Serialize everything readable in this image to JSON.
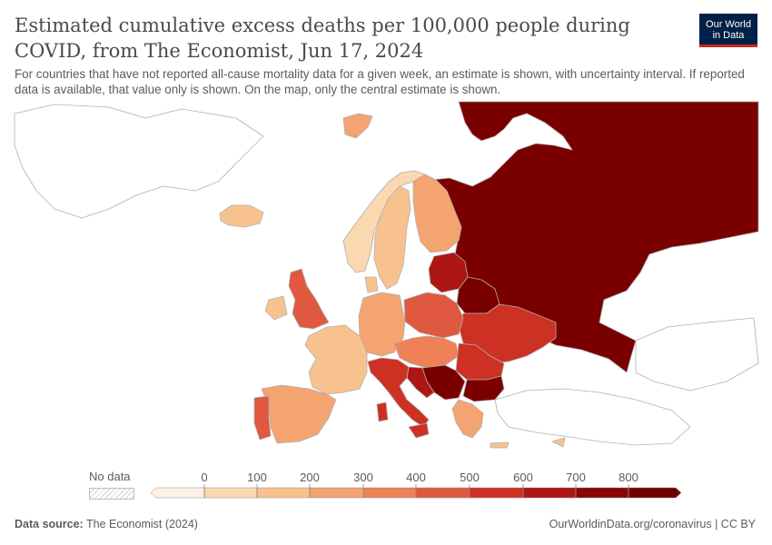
{
  "header": {
    "title": "Estimated cumulative excess deaths per 100,000 people during COVID, from The Economist, Jun 17, 2024",
    "subtitle": "For countries that have not reported all-cause mortality data for a given week, an estimate is shown, with uncertainty interval. If reported data is available, that value only is shown. On the map, only the central estimate is shown."
  },
  "logo": {
    "line1": "Our World",
    "line2": "in Data",
    "bg_color": "#002147",
    "accent_color": "#ce261e"
  },
  "legend": {
    "no_data_label": "No data",
    "ticks": [
      "0",
      "100",
      "200",
      "300",
      "400",
      "500",
      "600",
      "700",
      "800"
    ],
    "bins": [
      {
        "color": "#fdf0e5"
      },
      {
        "color": "#fad8b0"
      },
      {
        "color": "#f8c28f"
      },
      {
        "color": "#f4a470"
      },
      {
        "color": "#ee8256"
      },
      {
        "color": "#e0583f"
      },
      {
        "color": "#cc3124"
      },
      {
        "color": "#ae1515"
      },
      {
        "color": "#8a0505"
      },
      {
        "color": "#700000"
      }
    ]
  },
  "map_colors": {
    "land_outline": "#b0b0b0",
    "no_data_fill": "#ffffff"
  },
  "countries": [
    {
      "name": "Russia",
      "color": "#7a0000"
    },
    {
      "name": "Iceland",
      "color": "#f4a470"
    },
    {
      "name": "Norway",
      "color": "#fad8b0"
    },
    {
      "name": "Sweden",
      "color": "#f8c28f"
    },
    {
      "name": "Finland",
      "color": "#f4a470"
    },
    {
      "name": "United Kingdom",
      "color": "#e0583f"
    },
    {
      "name": "Ireland",
      "color": "#f8c28f"
    },
    {
      "name": "France",
      "color": "#f8c28f"
    },
    {
      "name": "Spain",
      "color": "#f4a470"
    },
    {
      "name": "Portugal",
      "color": "#e0583f"
    },
    {
      "name": "Germany",
      "color": "#f4a470"
    },
    {
      "name": "Poland",
      "color": "#e0583f"
    },
    {
      "name": "Belarus",
      "color": "#7a0000"
    },
    {
      "name": "Ukraine",
      "color": "#cc3124"
    },
    {
      "name": "Italy",
      "color": "#cc3124"
    },
    {
      "name": "Greece",
      "color": "#f4a470"
    },
    {
      "name": "Bulgaria",
      "color": "#7a0000"
    },
    {
      "name": "Romania",
      "color": "#cc3124"
    },
    {
      "name": "Serbia",
      "color": "#7a0000"
    },
    {
      "name": "Baltic states",
      "color": "#ae1515"
    }
  ],
  "footer": {
    "source_label": "Data source:",
    "source_value": "The Economist (2024)",
    "right": "OurWorldinData.org/coronavirus | CC BY"
  }
}
